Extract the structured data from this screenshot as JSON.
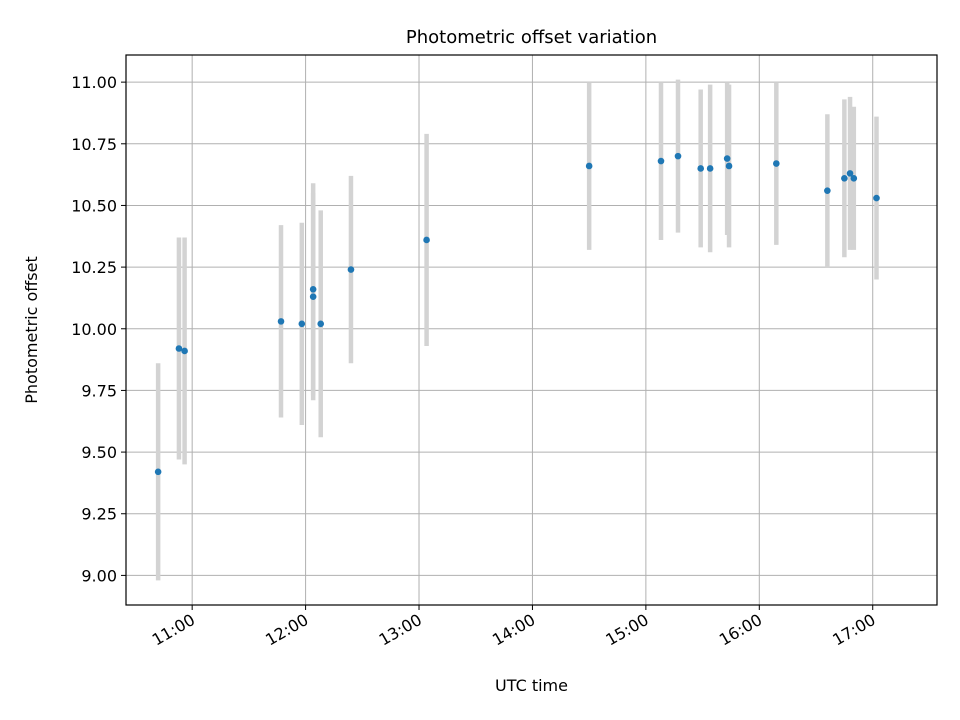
{
  "chart_data": {
    "type": "scatter",
    "title": "Photometric offset variation",
    "xlabel": "UTC time",
    "ylabel": "Photometric offset",
    "x_ticks": [
      "11:00",
      "12:00",
      "13:00",
      "14:00",
      "15:00",
      "16:00",
      "17:00"
    ],
    "y_ticks": [
      "9.00",
      "9.25",
      "9.50",
      "9.75",
      "10.00",
      "10.25",
      "10.50",
      "10.75",
      "11.00"
    ],
    "xlim": [
      "10:25",
      "17:34"
    ],
    "ylim": [
      8.88,
      11.11
    ],
    "grid": true,
    "point_color": "#1f77b4",
    "errorbar_color": "#d3d3d3",
    "points": [
      {
        "x": "10:42",
        "y": 9.42,
        "err": 0.44
      },
      {
        "x": "10:53",
        "y": 9.92,
        "err": 0.45
      },
      {
        "x": "10:56",
        "y": 9.91,
        "err": 0.46
      },
      {
        "x": "11:47",
        "y": 10.03,
        "err": 0.39
      },
      {
        "x": "11:58",
        "y": 10.02,
        "err": 0.41
      },
      {
        "x": "12:04",
        "y": 10.13,
        "err": 0.42
      },
      {
        "x": "12:04",
        "y": 10.16,
        "err": 0.43
      },
      {
        "x": "12:08",
        "y": 10.02,
        "err": 0.46
      },
      {
        "x": "12:24",
        "y": 10.24,
        "err": 0.38
      },
      {
        "x": "13:04",
        "y": 10.36,
        "err": 0.43
      },
      {
        "x": "14:30",
        "y": 10.66,
        "err": 0.34
      },
      {
        "x": "15:08",
        "y": 10.68,
        "err": 0.32
      },
      {
        "x": "15:17",
        "y": 10.7,
        "err": 0.31
      },
      {
        "x": "15:29",
        "y": 10.65,
        "err": 0.32
      },
      {
        "x": "15:34",
        "y": 10.65,
        "err": 0.34
      },
      {
        "x": "15:43",
        "y": 10.69,
        "err": 0.31
      },
      {
        "x": "15:44",
        "y": 10.66,
        "err": 0.33
      },
      {
        "x": "16:09",
        "y": 10.67,
        "err": 0.33
      },
      {
        "x": "16:36",
        "y": 10.56,
        "err": 0.31
      },
      {
        "x": "16:45",
        "y": 10.61,
        "err": 0.32
      },
      {
        "x": "16:48",
        "y": 10.63,
        "err": 0.31
      },
      {
        "x": "16:50",
        "y": 10.61,
        "err": 0.29
      },
      {
        "x": "17:02",
        "y": 10.53,
        "err": 0.33
      }
    ]
  }
}
